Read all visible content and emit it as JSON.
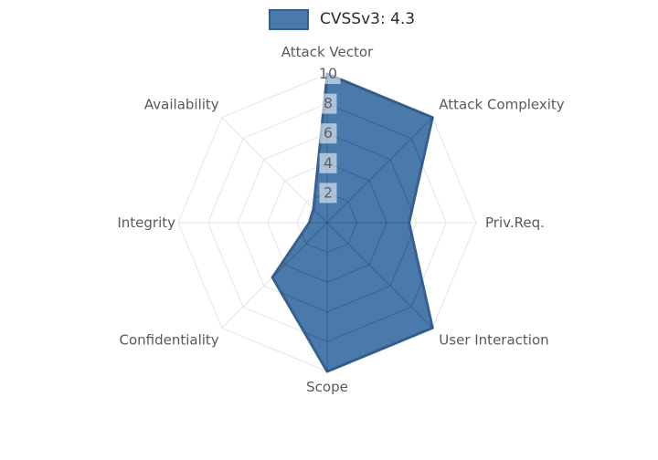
{
  "legend": {
    "label": "CVSSv3: 4.3",
    "swatch_fill": "#4a7aab",
    "swatch_border": "#36618e"
  },
  "chart_data": {
    "type": "radar",
    "title": "",
    "categories": [
      "Attack Vector",
      "Attack Complexity",
      "Priv.Req.",
      "User Interaction",
      "Scope",
      "Confidentiality",
      "Integrity",
      "Availability"
    ],
    "series": [
      {
        "name": "CVSSv3: 4.3",
        "values": [
          10,
          10,
          5.5,
          10,
          10,
          5.2,
          1.2,
          1.3
        ]
      }
    ],
    "radial_ticks": [
      2,
      4,
      6,
      8,
      10
    ],
    "range": [
      0,
      10
    ],
    "grid": true,
    "grid_shape": "polygon",
    "legend_position": "top",
    "fill_color": "#4a7aab",
    "edge_color": "#36618e",
    "outer_grid_color": "#e2e6ea",
    "inner_grid_color": "rgba(30,50,80,0.33)",
    "axis_label_color": "#595959",
    "tick_label_color": "#5f6368",
    "tick_box_fill": "rgba(255,255,255,0.55)"
  }
}
